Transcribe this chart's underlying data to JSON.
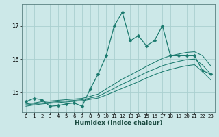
{
  "title": "",
  "xlabel": "Humidex (Indice chaleur)",
  "ylabel": "",
  "bg_color": "#cce8e8",
  "grid_color": "#aad0d0",
  "line_color": "#1a7a6e",
  "xlim": [
    -0.5,
    23.5
  ],
  "ylim": [
    14.4,
    17.65
  ],
  "yticks": [
    15,
    16,
    17
  ],
  "xticks": [
    0,
    1,
    2,
    3,
    4,
    5,
    6,
    7,
    8,
    9,
    10,
    11,
    12,
    13,
    14,
    15,
    16,
    17,
    18,
    19,
    20,
    21,
    22,
    23
  ],
  "series1_x": [
    0,
    1,
    2,
    3,
    4,
    5,
    6,
    7,
    8,
    9,
    10,
    11,
    12,
    13,
    14,
    15,
    16,
    17,
    18,
    19,
    20,
    21,
    22,
    23
  ],
  "series1_y": [
    14.72,
    14.82,
    14.78,
    14.58,
    14.6,
    14.65,
    14.68,
    14.58,
    15.1,
    15.55,
    16.1,
    17.0,
    17.4,
    16.55,
    16.7,
    16.4,
    16.55,
    17.0,
    16.1,
    16.1,
    16.1,
    16.1,
    15.65,
    15.55
  ],
  "series2_x": [
    0,
    1,
    2,
    3,
    4,
    5,
    6,
    7,
    8,
    9,
    10,
    11,
    12,
    13,
    14,
    15,
    16,
    17,
    18,
    19,
    20,
    21,
    22,
    23
  ],
  "series2_y": [
    14.65,
    14.68,
    14.72,
    14.74,
    14.76,
    14.78,
    14.8,
    14.82,
    14.88,
    14.95,
    15.1,
    15.25,
    15.4,
    15.52,
    15.65,
    15.78,
    15.9,
    16.02,
    16.1,
    16.15,
    16.2,
    16.22,
    16.1,
    15.8
  ],
  "series3_x": [
    0,
    1,
    2,
    3,
    4,
    5,
    6,
    7,
    8,
    9,
    10,
    11,
    12,
    13,
    14,
    15,
    16,
    17,
    18,
    19,
    20,
    21,
    22,
    23
  ],
  "series3_y": [
    14.62,
    14.65,
    14.68,
    14.7,
    14.72,
    14.74,
    14.76,
    14.78,
    14.83,
    14.88,
    15.0,
    15.12,
    15.25,
    15.36,
    15.48,
    15.6,
    15.7,
    15.8,
    15.87,
    15.93,
    15.98,
    16.0,
    15.82,
    15.55
  ],
  "series4_x": [
    0,
    1,
    2,
    3,
    4,
    5,
    6,
    7,
    8,
    9,
    10,
    11,
    12,
    13,
    14,
    15,
    16,
    17,
    18,
    19,
    20,
    21,
    22,
    23
  ],
  "series4_y": [
    14.58,
    14.62,
    14.65,
    14.67,
    14.69,
    14.71,
    14.73,
    14.75,
    14.79,
    14.83,
    14.92,
    15.02,
    15.12,
    15.22,
    15.32,
    15.43,
    15.53,
    15.62,
    15.69,
    15.75,
    15.8,
    15.83,
    15.62,
    15.38
  ]
}
